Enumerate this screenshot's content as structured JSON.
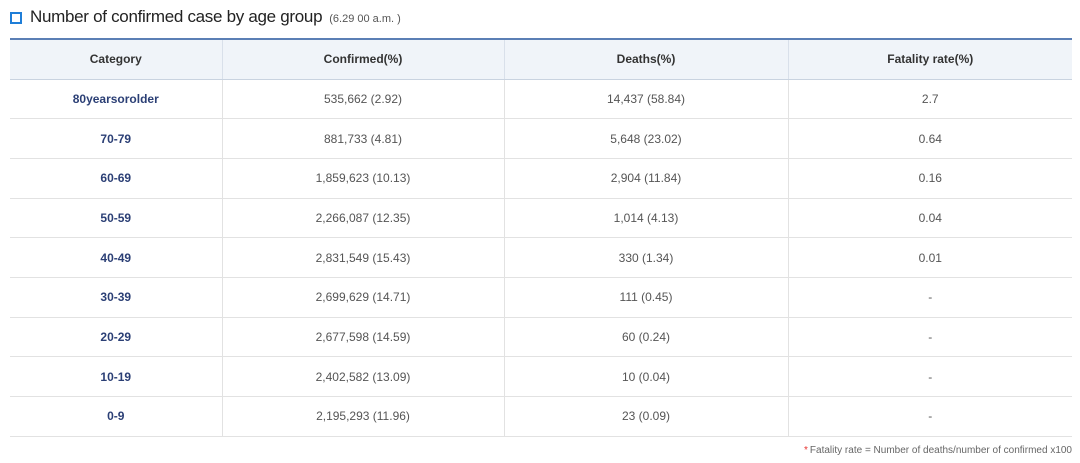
{
  "header": {
    "title": "Number of confirmed case by age group",
    "note": "(6.29 00 a.m. )"
  },
  "table": {
    "columns": [
      "Category",
      "Confirmed(%)",
      "Deaths(%)",
      "Fatality rate(%)"
    ],
    "rows": [
      [
        "80yearsorolder",
        "535,662 (2.92)",
        "14,437 (58.84)",
        "2.7"
      ],
      [
        "70-79",
        "881,733 (4.81)",
        "5,648 (23.02)",
        "0.64"
      ],
      [
        "60-69",
        "1,859,623 (10.13)",
        "2,904 (11.84)",
        "0.16"
      ],
      [
        "50-59",
        "2,266,087 (12.35)",
        "1,014 (4.13)",
        "0.04"
      ],
      [
        "40-49",
        "2,831,549 (15.43)",
        "330 (1.34)",
        "0.01"
      ],
      [
        "30-39",
        "2,699,629 (14.71)",
        "111 (0.45)",
        "-"
      ],
      [
        "20-29",
        "2,677,598 (14.59)",
        "60 (0.24)",
        "-"
      ],
      [
        "10-19",
        "2,402,582 (13.09)",
        "10 (0.04)",
        "-"
      ],
      [
        "0-9",
        "2,195,293 (11.96)",
        "23 (0.09)",
        "-"
      ]
    ]
  },
  "footnote": {
    "marker": "*",
    "text": "Fatality rate = Number of deaths/number of confirmed x100"
  },
  "colors": {
    "accent": "#1f7ed8",
    "header_border": "#5b7fb5",
    "category_text": "#2b3f75",
    "footnote_marker": "#e8322f"
  },
  "icons": {
    "title_bullet": "square-bullet-icon"
  }
}
